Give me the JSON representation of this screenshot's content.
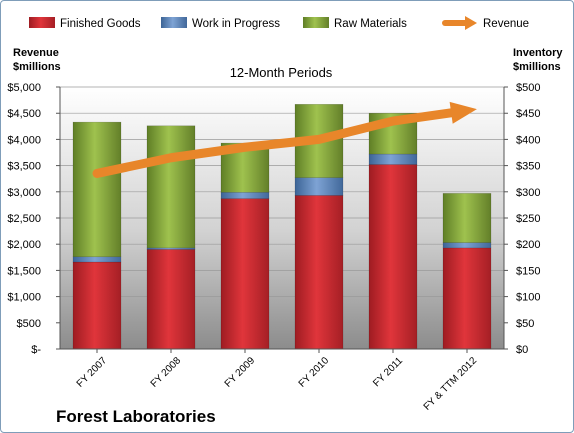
{
  "chart_data": {
    "type": "bar",
    "stacked": true,
    "title": "12-Month Periods",
    "company": "Forest Laboratories",
    "left_axis_label": [
      "Revenue",
      "$millions"
    ],
    "right_axis_label": [
      "Inventory",
      "$millions"
    ],
    "categories": [
      "FY 2007",
      "FY 2008",
      "FY 2009",
      "FY 2010",
      "FY 2011",
      "FY & TTM 2012"
    ],
    "left_ylim": [
      0,
      5000
    ],
    "right_ylim": [
      0,
      500
    ],
    "left_ticks": [
      "$-",
      "$500",
      "$1,000",
      "$1,500",
      "$2,000",
      "$2,500",
      "$3,000",
      "$3,500",
      "$4,000",
      "$4,500",
      "$5,000"
    ],
    "right_ticks": [
      "$0",
      "$50",
      "$100",
      "$150",
      "$200",
      "$250",
      "$300",
      "$350",
      "$400",
      "$450",
      "$500"
    ],
    "legend_position": "top",
    "series": [
      {
        "name": "Finished Goods",
        "axis": "right",
        "color": "#c0272d",
        "values": [
          166,
          190,
          287,
          293,
          352,
          193
        ]
      },
      {
        "name": "Work in Progress",
        "axis": "right",
        "color": "#4f81bd",
        "values": [
          10,
          3,
          12,
          34,
          20,
          10
        ]
      },
      {
        "name": "Raw Materials",
        "axis": "right",
        "color": "#7ea23a",
        "values": [
          257,
          233,
          94,
          140,
          78,
          94
        ]
      },
      {
        "name": "Revenue",
        "axis": "left",
        "type": "line",
        "color": "#e8862a",
        "values": [
          3350,
          3650,
          3850,
          4000,
          4350,
          4550
        ]
      }
    ]
  }
}
